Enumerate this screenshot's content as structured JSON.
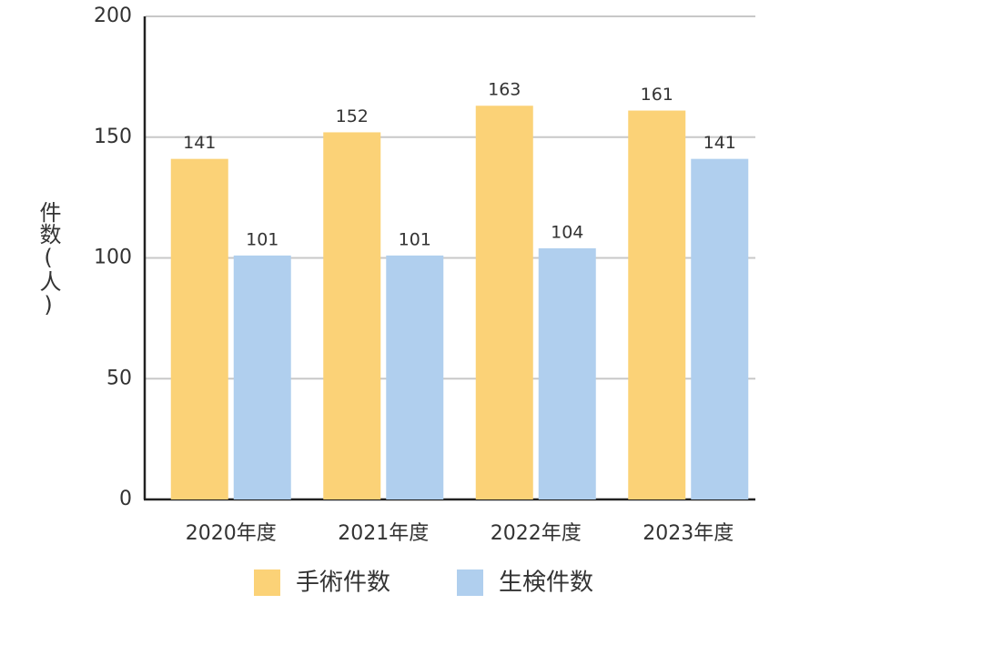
{
  "chart_data": {
    "type": "bar",
    "y_label": "件数(人)",
    "categories": [
      "2020年度",
      "2021年度",
      "2022年度",
      "2023年度"
    ],
    "series": [
      {
        "name": "手術件数",
        "color": "#fbd277",
        "values": [
          141,
          152,
          163,
          161
        ]
      },
      {
        "name": "生検件数",
        "color": "#b0cfee",
        "values": [
          101,
          101,
          104,
          141
        ]
      }
    ],
    "ylim": [
      0,
      200
    ],
    "yticks": [
      0,
      50,
      100,
      150,
      200
    ],
    "grid": true
  }
}
